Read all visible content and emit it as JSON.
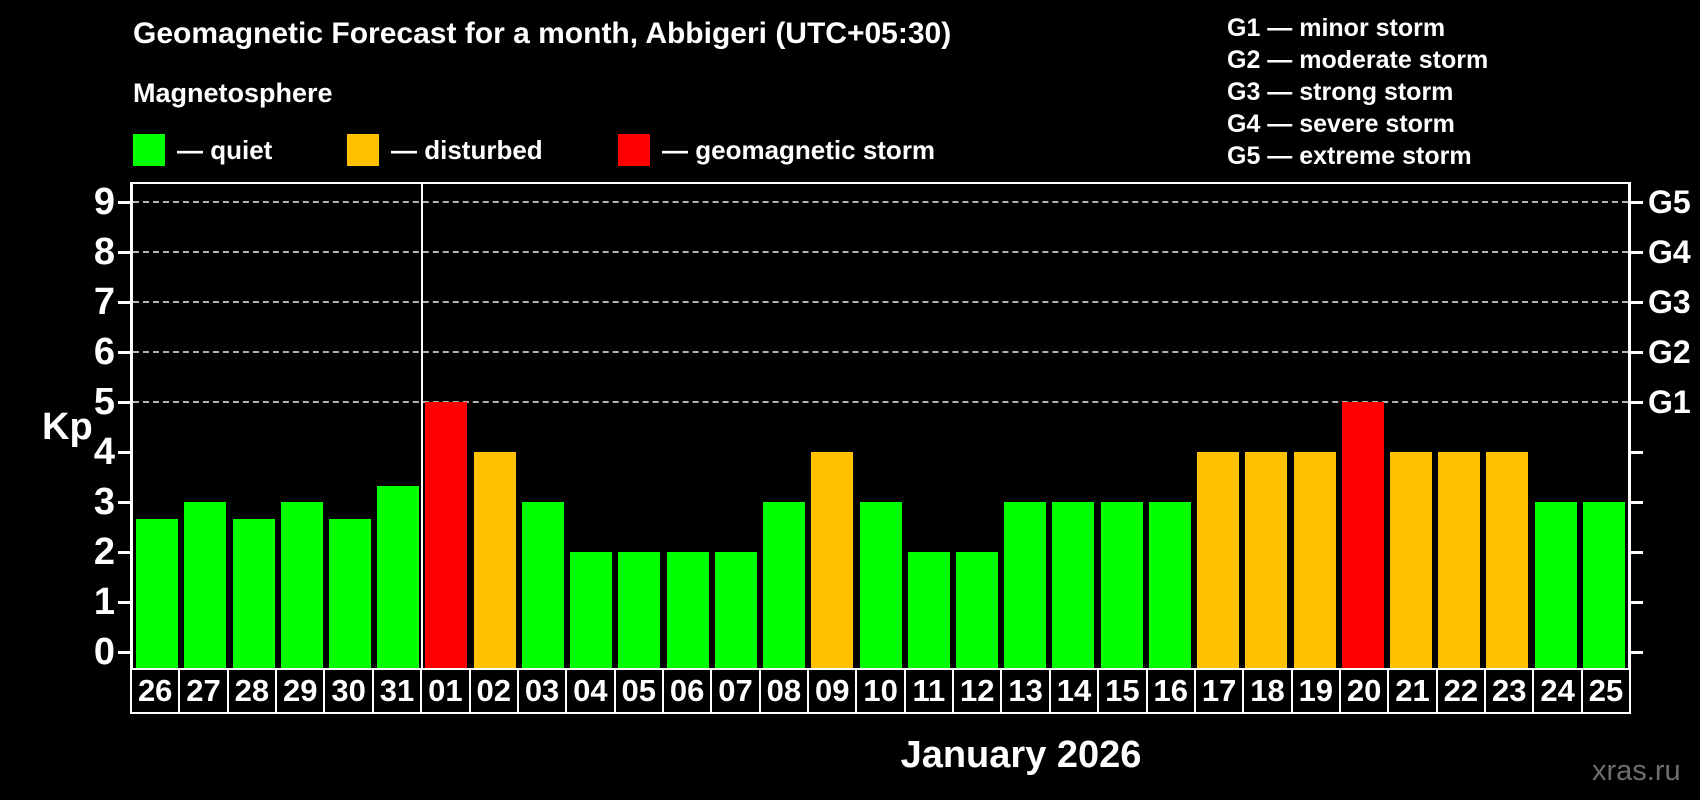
{
  "title": "Geomagnetic Forecast for a month, Abbigeri (UTC+05:30)",
  "legend": {
    "heading": "Magnetosphere",
    "items": [
      {
        "status": "quiet",
        "label": "— quiet",
        "color": "#00ff00"
      },
      {
        "status": "disturbed",
        "label": "— disturbed",
        "color": "#ffc000"
      },
      {
        "status": "storm",
        "label": "— geomagnetic storm",
        "color": "#ff0000"
      }
    ]
  },
  "storm_scale_legend": [
    "G1 — minor storm",
    "G2 — moderate storm",
    "G3 — strong storm",
    "G4 — severe storm",
    "G5 — extreme storm"
  ],
  "chart_data": {
    "type": "bar",
    "title": "Geomagnetic Forecast for a month, Abbigeri (UTC+05:30)",
    "ylabel": "Kp",
    "xlabel": "January 2026",
    "ylim": [
      0,
      9.4
    ],
    "grid": "dashed horizontal lines at Kp 5-9 only",
    "y_ticks": [
      "0",
      "1",
      "2",
      "3",
      "4",
      "5",
      "6",
      "7",
      "8",
      "9"
    ],
    "right_axis_labels": [
      {
        "label": "G1",
        "kp": 5
      },
      {
        "label": "G2",
        "kp": 6
      },
      {
        "label": "G3",
        "kp": 7
      },
      {
        "label": "G4",
        "kp": 8
      },
      {
        "label": "G5",
        "kp": 9
      }
    ],
    "gridline_levels": [
      5,
      6,
      7,
      8,
      9
    ],
    "categories": [
      "26",
      "27",
      "28",
      "29",
      "30",
      "31",
      "01",
      "02",
      "03",
      "04",
      "05",
      "06",
      "07",
      "08",
      "09",
      "10",
      "11",
      "12",
      "13",
      "14",
      "15",
      "16",
      "17",
      "18",
      "19",
      "20",
      "21",
      "22",
      "23",
      "24",
      "25"
    ],
    "values": [
      2.67,
      3,
      2.67,
      3,
      2.67,
      3.33,
      5,
      4,
      3,
      2,
      2,
      2,
      2,
      3,
      4,
      3,
      2,
      2,
      3,
      3,
      3,
      3,
      4,
      4,
      4,
      5,
      4,
      4,
      4,
      3,
      3
    ],
    "statuses": [
      "quiet",
      "quiet",
      "quiet",
      "quiet",
      "quiet",
      "quiet",
      "storm",
      "disturbed",
      "quiet",
      "quiet",
      "quiet",
      "quiet",
      "quiet",
      "quiet",
      "disturbed",
      "quiet",
      "quiet",
      "quiet",
      "quiet",
      "quiet",
      "quiet",
      "quiet",
      "disturbed",
      "disturbed",
      "disturbed",
      "storm",
      "disturbed",
      "disturbed",
      "disturbed",
      "quiet",
      "quiet"
    ],
    "colors": {
      "quiet": "#00ff00",
      "disturbed": "#ffc000",
      "storm": "#ff0000"
    },
    "month_separator_after_category": "31",
    "month_separator_index": 6
  },
  "footer": {
    "month_label": "January 2026",
    "watermark": "xras.ru"
  }
}
